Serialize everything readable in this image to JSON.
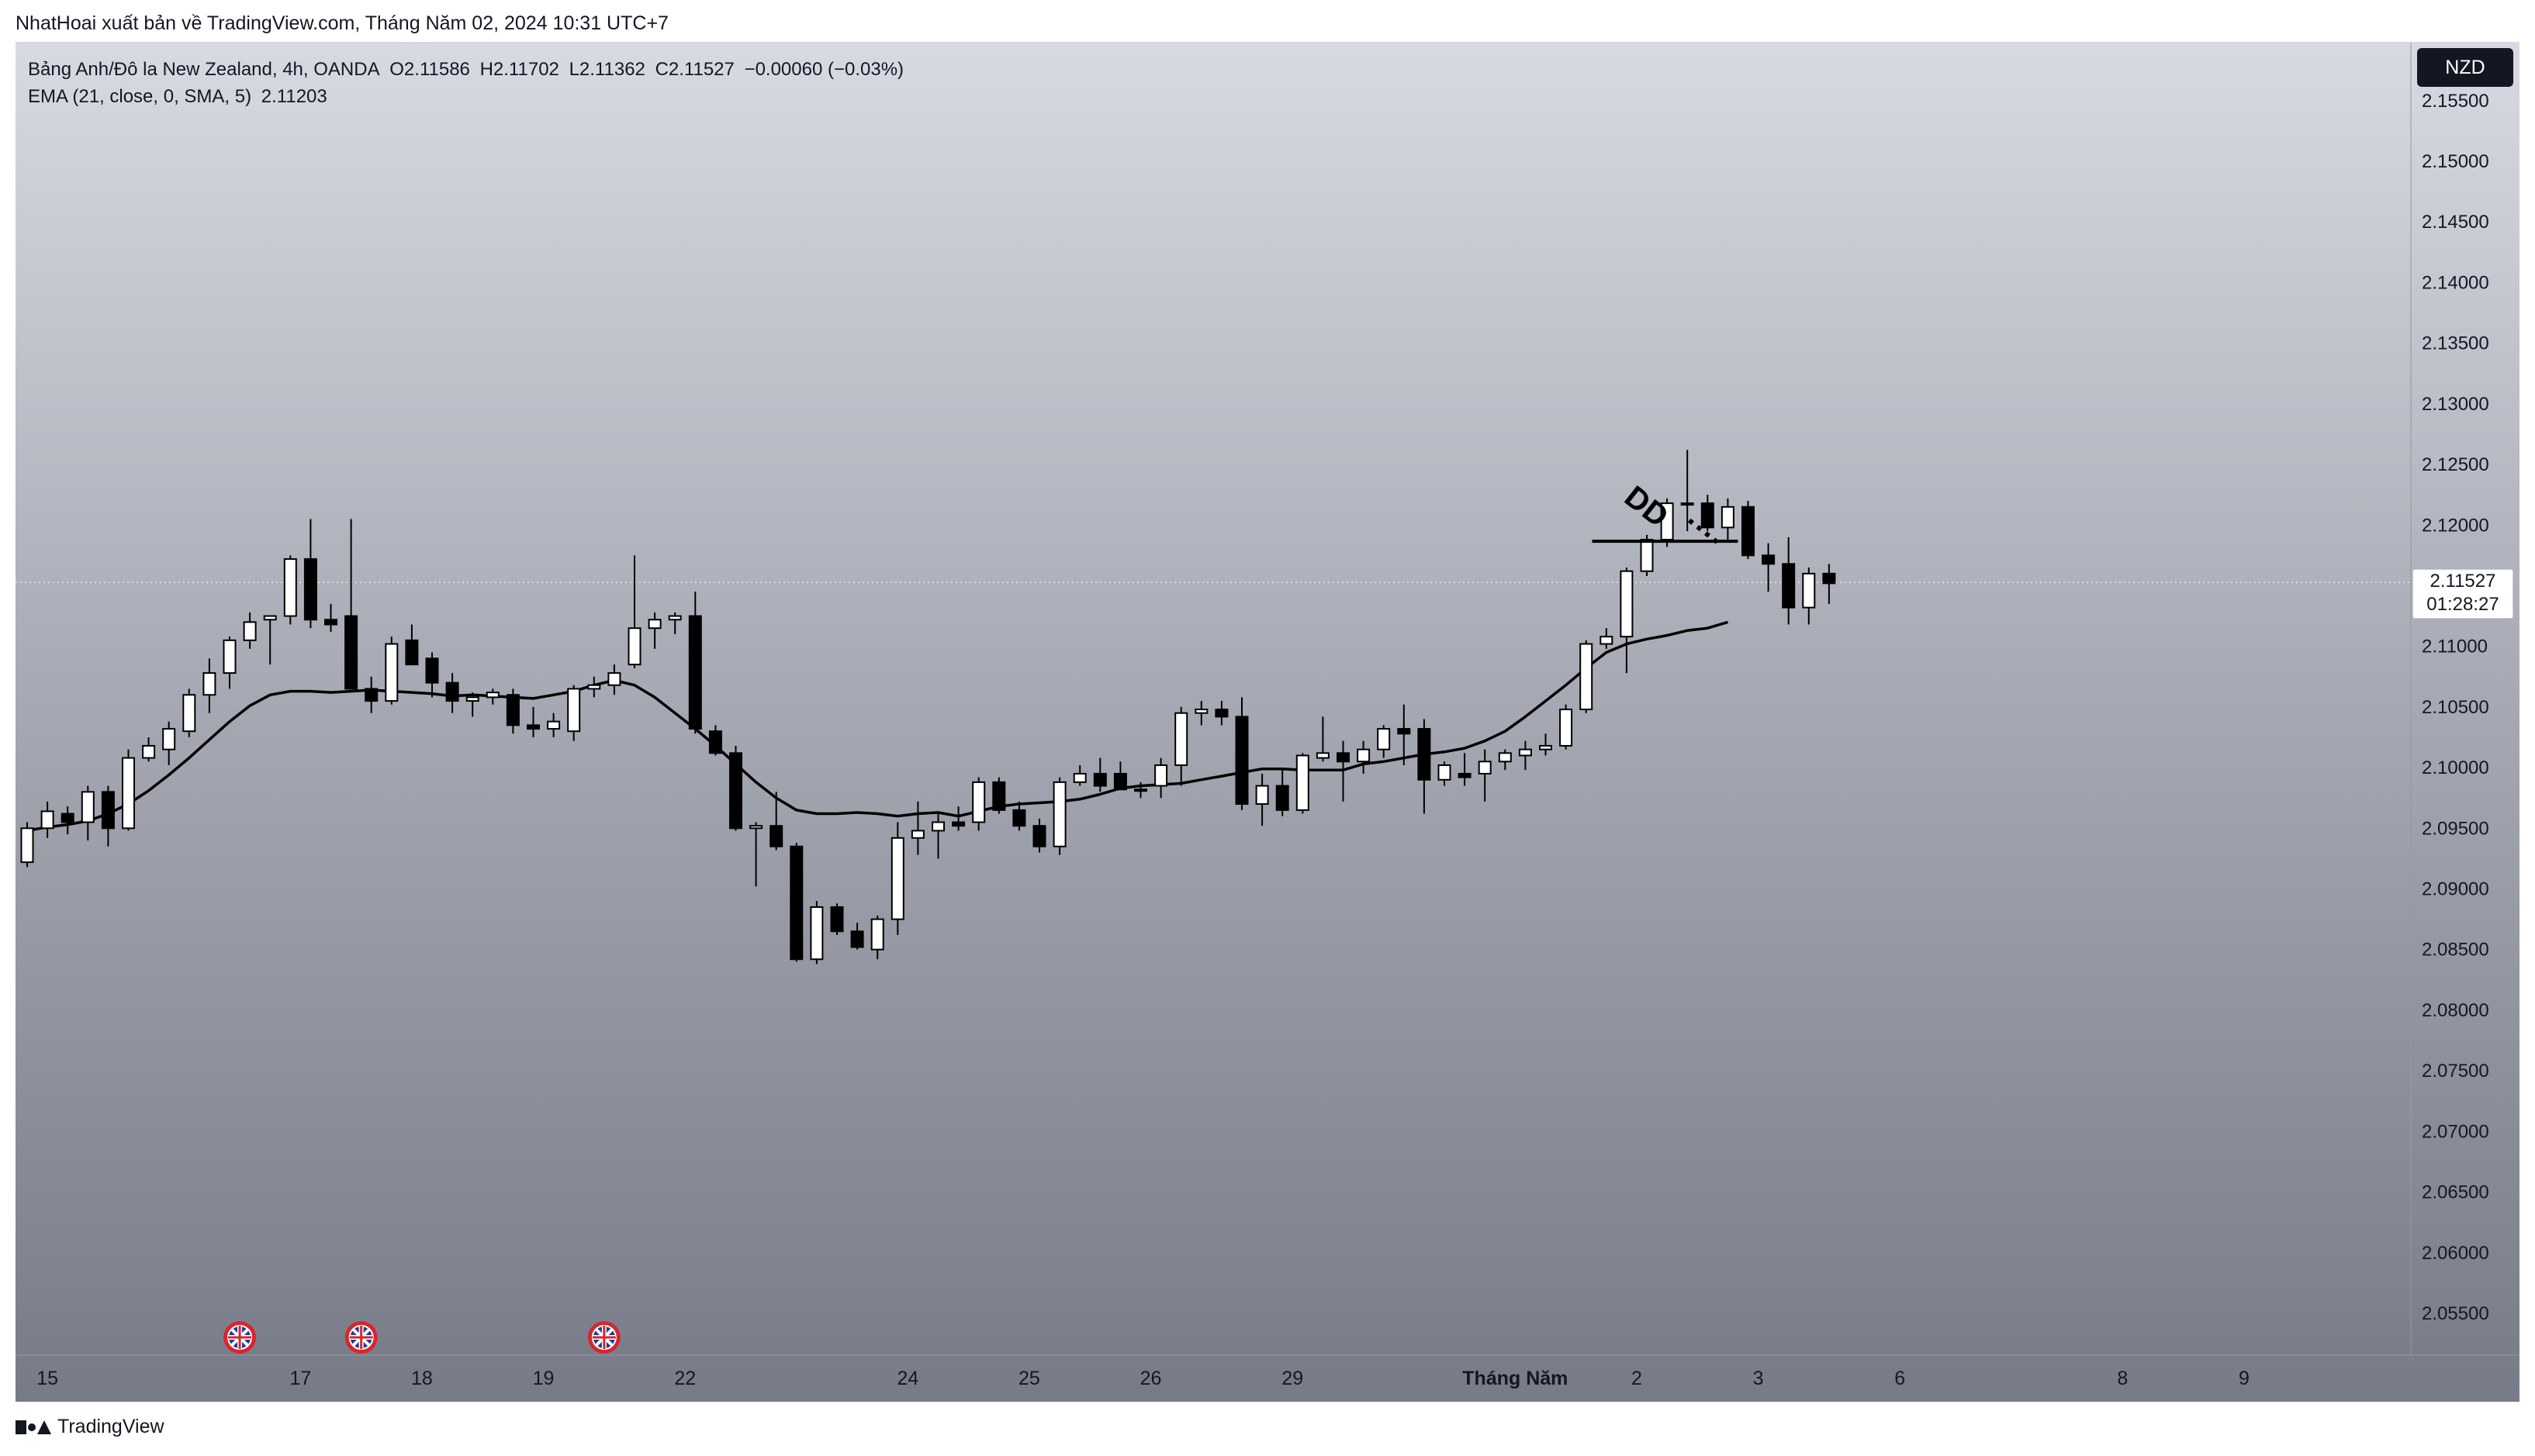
{
  "header": {
    "caption": "NhatHoai xuất bản về TradingView.com, Tháng Năm 02, 2024 10:31 UTC+7"
  },
  "legend": {
    "symbol": "Bảng Anh/Đô la New Zealand, 4h, OANDA",
    "open": "O2.11586",
    "high": "H2.11702",
    "low": "L2.11362",
    "close": "C2.11527",
    "change": "−0.00060 (−0.03%)",
    "indicator": "EMA (21, close, 0, SMA, 5)",
    "indicator_value": "2.11203"
  },
  "currency_badge": "NZD",
  "last_price": {
    "value": "2.11527",
    "countdown": "01:28:27"
  },
  "annotation": {
    "text": "DD",
    "dots": "····",
    "level": 2.11867
  },
  "footer": {
    "brand": "TradingView"
  },
  "colors": {
    "bull": "#ffffff",
    "bear": "#000000",
    "ema": "#000000",
    "axis_text": "#131722"
  },
  "icons": [
    "uk-flag-event-icon",
    "tradingview-logo-icon"
  ],
  "chart_data": {
    "type": "candlestick",
    "title": "Bảng Anh/Đô la New Zealand, 4h, OANDA",
    "ylim": [
      2.051,
      2.158
    ],
    "y_ticks": [
      "2.15500",
      "2.15000",
      "2.14500",
      "2.14000",
      "2.13500",
      "2.13000",
      "2.12500",
      "2.12000",
      "2.11500",
      "2.11000",
      "2.10500",
      "2.10000",
      "2.09500",
      "2.09000",
      "2.08500",
      "2.08000",
      "2.07500",
      "2.07000",
      "2.06500",
      "2.06000",
      "2.05500"
    ],
    "x_ticks": [
      {
        "label": "15",
        "i": 1
      },
      {
        "label": "17",
        "i": 13.5
      },
      {
        "label": "18",
        "i": 19.5
      },
      {
        "label": "19",
        "i": 25.5
      },
      {
        "label": "22",
        "i": 32.5
      },
      {
        "label": "24",
        "i": 43.5
      },
      {
        "label": "25",
        "i": 49.5
      },
      {
        "label": "26",
        "i": 55.5
      },
      {
        "label": "29",
        "i": 62.5
      },
      {
        "label": "Tháng Năm",
        "i": 73.5,
        "bold": true
      },
      {
        "label": "2",
        "i": 79.5
      },
      {
        "label": "3",
        "i": 85.5
      },
      {
        "label": "6",
        "i": 92.5
      },
      {
        "label": "8",
        "i": 103.5
      },
      {
        "label": "9",
        "i": 109.5
      }
    ],
    "event_marks": [
      10.5,
      16.5,
      28.5
    ],
    "candles": [
      [
        2.0922,
        2.0955,
        2.0918,
        2.095
      ],
      [
        2.095,
        2.0972,
        2.0942,
        2.0964
      ],
      [
        2.0962,
        2.0968,
        2.0945,
        2.0955
      ],
      [
        2.0955,
        2.0985,
        2.094,
        2.098
      ],
      [
        2.098,
        2.0985,
        2.0935,
        2.095
      ],
      [
        2.095,
        2.1015,
        2.0948,
        2.1008
      ],
      [
        2.1008,
        2.1025,
        2.1005,
        2.1018
      ],
      [
        2.1015,
        2.1038,
        2.1002,
        2.1032
      ],
      [
        2.103,
        2.1065,
        2.1025,
        2.106
      ],
      [
        2.106,
        2.109,
        2.1045,
        2.1078
      ],
      [
        2.1078,
        2.1108,
        2.1065,
        2.1105
      ],
      [
        2.1105,
        2.1128,
        2.1098,
        2.112
      ],
      [
        2.1122,
        2.1125,
        2.1085,
        2.1125
      ],
      [
        2.1125,
        2.1175,
        2.1118,
        2.1172
      ],
      [
        2.1172,
        2.1205,
        2.1115,
        2.1122
      ],
      [
        2.1122,
        2.1135,
        2.1112,
        2.1118
      ],
      [
        2.1125,
        2.1205,
        2.1065,
        2.1065
      ],
      [
        2.1065,
        2.1075,
        2.1045,
        2.1055
      ],
      [
        2.1055,
        2.1108,
        2.1052,
        2.1102
      ],
      [
        2.1105,
        2.1118,
        2.1085,
        2.1085
      ],
      [
        2.109,
        2.1095,
        2.1058,
        2.107
      ],
      [
        2.107,
        2.1078,
        2.1045,
        2.1055
      ],
      [
        2.1055,
        2.1062,
        2.1042,
        2.1058
      ],
      [
        2.1058,
        2.1065,
        2.1052,
        2.1062
      ],
      [
        2.106,
        2.1065,
        2.1028,
        2.1035
      ],
      [
        2.1035,
        2.105,
        2.1025,
        2.1032
      ],
      [
        2.1032,
        2.1045,
        2.1025,
        2.1038
      ],
      [
        2.103,
        2.1068,
        2.1022,
        2.1065
      ],
      [
        2.1065,
        2.1075,
        2.1058,
        2.1068
      ],
      [
        2.1068,
        2.1085,
        2.106,
        2.1078
      ],
      [
        2.1085,
        2.1175,
        2.1082,
        2.1115
      ],
      [
        2.1115,
        2.1128,
        2.1098,
        2.1122
      ],
      [
        2.1122,
        2.1128,
        2.111,
        2.1125
      ],
      [
        2.1125,
        2.1145,
        2.1028,
        2.1032
      ],
      [
        2.103,
        2.1035,
        2.101,
        2.1012
      ],
      [
        2.1012,
        2.1018,
        2.0948,
        2.095
      ],
      [
        2.095,
        2.0955,
        2.0902,
        2.0952
      ],
      [
        2.0952,
        2.098,
        2.0932,
        2.0935
      ],
      [
        2.0935,
        2.0938,
        2.084,
        2.0842
      ],
      [
        2.0842,
        2.089,
        2.0838,
        2.0885
      ],
      [
        2.0885,
        2.0888,
        2.0862,
        2.0865
      ],
      [
        2.0865,
        2.0872,
        2.085,
        2.0852
      ],
      [
        2.085,
        2.0878,
        2.0842,
        2.0875
      ],
      [
        2.0875,
        2.0955,
        2.0862,
        2.0942
      ],
      [
        2.0942,
        2.0972,
        2.0928,
        2.0948
      ],
      [
        2.0948,
        2.0962,
        2.0925,
        2.0955
      ],
      [
        2.0955,
        2.0968,
        2.0948,
        2.0952
      ],
      [
        2.0955,
        2.0992,
        2.0948,
        2.0988
      ],
      [
        2.0988,
        2.0992,
        2.0962,
        2.0965
      ],
      [
        2.0965,
        2.0972,
        2.0948,
        2.0952
      ],
      [
        2.0952,
        2.0958,
        2.093,
        2.0935
      ],
      [
        2.0935,
        2.0992,
        2.0928,
        2.0988
      ],
      [
        2.0988,
        2.1002,
        2.0985,
        2.0995
      ],
      [
        2.0995,
        2.1008,
        2.098,
        2.0985
      ],
      [
        2.0995,
        2.1005,
        2.0982,
        2.0982
      ],
      [
        2.0982,
        2.0988,
        2.0975,
        2.0982
      ],
      [
        2.0985,
        2.1008,
        2.0975,
        2.1002
      ],
      [
        2.1002,
        2.105,
        2.0985,
        2.1045
      ],
      [
        2.1045,
        2.1055,
        2.1035,
        2.1048
      ],
      [
        2.1048,
        2.1055,
        2.1035,
        2.1042
      ],
      [
        2.1042,
        2.1058,
        2.0965,
        2.097
      ],
      [
        2.097,
        2.0995,
        2.0952,
        2.0985
      ],
      [
        2.0985,
        2.0998,
        2.096,
        2.0965
      ],
      [
        2.0965,
        2.1012,
        2.0962,
        2.101
      ],
      [
        2.1008,
        2.1042,
        2.1005,
        2.1012
      ],
      [
        2.1012,
        2.1022,
        2.0972,
        2.1005
      ],
      [
        2.1005,
        2.1022,
        2.0995,
        2.1015
      ],
      [
        2.1015,
        2.1035,
        2.1008,
        2.1032
      ],
      [
        2.1032,
        2.1052,
        2.1002,
        2.1028
      ],
      [
        2.1032,
        2.104,
        2.0962,
        2.099
      ],
      [
        2.099,
        2.1005,
        2.0985,
        2.1002
      ],
      [
        2.0995,
        2.1012,
        2.0985,
        2.0992
      ],
      [
        2.0995,
        2.1015,
        2.0972,
        2.1005
      ],
      [
        2.1005,
        2.1015,
        2.0998,
        2.1012
      ],
      [
        2.101,
        2.1022,
        2.0998,
        2.1015
      ],
      [
        2.1015,
        2.1028,
        2.101,
        2.1018
      ],
      [
        2.1018,
        2.1052,
        2.1015,
        2.1048
      ],
      [
        2.1048,
        2.1105,
        2.1045,
        2.1102
      ],
      [
        2.1102,
        2.1115,
        2.1098,
        2.1108
      ],
      [
        2.1108,
        2.1165,
        2.1078,
        2.1162
      ],
      [
        2.1162,
        2.1192,
        2.1158,
        2.1188
      ],
      [
        2.1188,
        2.1222,
        2.1182,
        2.1218
      ],
      [
        2.1218,
        2.1262,
        2.1195,
        2.1218
      ],
      [
        2.1218,
        2.1225,
        2.1195,
        2.1198
      ],
      [
        2.1198,
        2.1222,
        2.1188,
        2.1215
      ],
      [
        2.1215,
        2.122,
        2.1172,
        2.1175
      ],
      [
        2.1175,
        2.1185,
        2.1145,
        2.1168
      ],
      [
        2.1168,
        2.119,
        2.1118,
        2.1132
      ],
      [
        2.1132,
        2.1165,
        2.1118,
        2.116
      ],
      [
        2.116,
        2.1168,
        2.1135,
        2.1152
      ]
    ],
    "ema": [
      2.0948,
      2.0951,
      2.0953,
      2.0956,
      2.0962,
      2.097,
      2.0981,
      2.0994,
      2.1008,
      2.1023,
      2.1038,
      2.1051,
      2.106,
      2.1063,
      2.1063,
      2.1062,
      2.1063,
      2.1064,
      2.1063,
      2.1062,
      2.1061,
      2.1059,
      2.106,
      2.1059,
      2.1058,
      2.1057,
      2.106,
      2.1063,
      2.1068,
      2.1072,
      2.1068,
      2.1058,
      2.1045,
      2.1032,
      2.1018,
      2.1003,
      2.0988,
      2.0975,
      2.0965,
      2.0962,
      2.0962,
      2.0963,
      2.0962,
      2.096,
      2.0962,
      2.0963,
      2.096,
      2.0964,
      2.0968,
      2.097,
      2.0971,
      2.0972,
      2.0974,
      2.0978,
      2.0983,
      2.0985,
      2.0986,
      2.0987,
      2.099,
      2.0993,
      2.0996,
      2.0999,
      2.0999,
      2.0998,
      2.0998,
      2.0998,
      2.1003,
      2.1005,
      2.1008,
      2.1011,
      2.1013,
      2.1016,
      2.1022,
      2.103,
      2.1042,
      2.1055,
      2.1068,
      2.1082,
      2.1095,
      2.1102,
      2.1106,
      2.1109,
      2.1113,
      2.1115,
      2.112
    ]
  }
}
